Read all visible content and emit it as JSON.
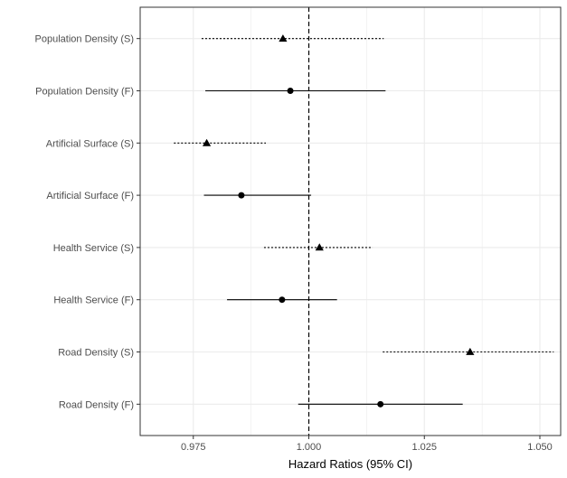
{
  "chart_data": {
    "type": "forest",
    "title": "",
    "xlabel": "Hazard Ratios (95% CI)",
    "ylabel": "",
    "xlim": [
      0.9635,
      1.0545
    ],
    "x_ticks": [
      0.975,
      1.0,
      1.025,
      1.05
    ],
    "x_tick_labels": [
      "0.975",
      "1.000",
      "1.025",
      "1.050"
    ],
    "reference_line": 1.0,
    "grid": true,
    "colors": {
      "marks": "#000000",
      "grid": "#ebebeb",
      "panel_border": "#333333"
    },
    "rows": [
      {
        "label": "Population Density (S)",
        "estimate": 0.9944,
        "lower": 0.9768,
        "upper": 1.0162,
        "marker": "triangle",
        "line_style": "dotted"
      },
      {
        "label": "Population Density (F)",
        "estimate": 0.996,
        "lower": 0.9776,
        "upper": 1.0166,
        "marker": "circle",
        "line_style": "solid"
      },
      {
        "label": "Artificial Surface (S)",
        "estimate": 0.9779,
        "lower": 0.9708,
        "upper": 0.9907,
        "marker": "triangle",
        "line_style": "dotted"
      },
      {
        "label": "Artificial Surface (F)",
        "estimate": 0.9854,
        "lower": 0.9773,
        "upper": 1.0005,
        "marker": "circle",
        "line_style": "solid"
      },
      {
        "label": "Health Service (S)",
        "estimate": 1.0023,
        "lower": 0.9903,
        "upper": 1.0138,
        "marker": "triangle",
        "line_style": "dotted"
      },
      {
        "label": "Health Service (F)",
        "estimate": 0.9942,
        "lower": 0.9823,
        "upper": 1.0061,
        "marker": "circle",
        "line_style": "solid"
      },
      {
        "label": "Road Density (S)",
        "estimate": 1.0349,
        "lower": 1.016,
        "upper": 1.053,
        "marker": "triangle",
        "line_style": "dotted"
      },
      {
        "label": "Road Density (F)",
        "estimate": 1.0155,
        "lower": 0.9977,
        "upper": 1.0333,
        "marker": "circle",
        "line_style": "solid"
      }
    ]
  }
}
